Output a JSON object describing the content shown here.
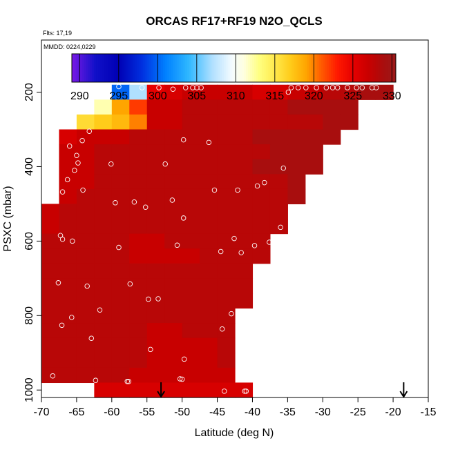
{
  "chart_data": {
    "type": "heatmap",
    "title": "ORCAS RF17+RF19 N2O_QCLS",
    "subtitle_flights": "Flts: 17,19",
    "subtitle_dates": "MMDD: 0224,0229",
    "xlabel": "Latitude (deg N)",
    "ylabel": "PSXC (mbar)",
    "xlim": [
      -70,
      -15
    ],
    "ylim": [
      1020,
      60
    ],
    "x_ticks": [
      -70,
      -65,
      -60,
      -55,
      -50,
      -45,
      -40,
      -35,
      -30,
      -25,
      -20,
      -15
    ],
    "y_ticks": [
      200,
      400,
      600,
      800,
      1000
    ],
    "colorbar": {
      "range": [
        289,
        330.5
      ],
      "ticks": [
        290,
        295,
        300,
        305,
        310,
        315,
        320,
        325,
        330
      ],
      "stops": [
        {
          "v": 289,
          "c": "#7a19e6"
        },
        {
          "v": 292,
          "c": "#1010c8"
        },
        {
          "v": 295,
          "c": "#0000b4"
        },
        {
          "v": 298,
          "c": "#0030e0"
        },
        {
          "v": 301,
          "c": "#0080ff"
        },
        {
          "v": 304,
          "c": "#30b8ff"
        },
        {
          "v": 307,
          "c": "#b0e0ff"
        },
        {
          "v": 309.5,
          "c": "#f4fbff"
        },
        {
          "v": 311,
          "c": "#ffffe0"
        },
        {
          "v": 313,
          "c": "#ffff80"
        },
        {
          "v": 315,
          "c": "#ffe94d"
        },
        {
          "v": 317,
          "c": "#ffcc1a"
        },
        {
          "v": 319,
          "c": "#ffa500"
        },
        {
          "v": 321,
          "c": "#ff5a00"
        },
        {
          "v": 323,
          "c": "#ff1a00"
        },
        {
          "v": 325,
          "c": "#e60000"
        },
        {
          "v": 327,
          "c": "#c80000"
        },
        {
          "v": 329,
          "c": "#a80e0e"
        },
        {
          "v": 330.5,
          "c": "#9c1a1a"
        }
      ]
    },
    "grid_cells": {
      "p_levels": [
        180,
        220,
        260,
        300,
        340,
        380,
        420,
        460,
        500,
        540,
        580,
        620,
        660,
        700,
        740,
        780,
        820,
        860,
        900,
        940,
        980,
        1020
      ],
      "lat_edges": [
        -70,
        -67.5,
        -65,
        -62.5,
        -60,
        -57.5,
        -55,
        -52.5,
        -50,
        -47.5,
        -45,
        -42.5,
        -40,
        -37.5,
        -35,
        -32.5,
        -30,
        -27.5,
        -25,
        -22.5,
        -20
      ],
      "value_rows": [
        [
          null,
          null,
          null,
          null,
          300,
          307,
          325,
          326,
          327,
          327,
          327,
          327,
          326,
          326,
          327,
          327,
          328,
          328,
          329,
          329
        ],
        [
          null,
          null,
          null,
          312,
          319,
          322,
          327,
          327,
          328,
          328,
          328,
          328,
          328,
          328,
          329,
          329,
          329,
          329,
          null,
          null
        ],
        [
          null,
          null,
          316,
          317,
          318,
          320,
          327,
          327,
          328,
          328,
          328,
          328,
          328,
          328,
          328,
          328,
          329,
          329,
          null,
          null
        ],
        [
          null,
          326,
          327,
          327,
          327,
          328,
          328,
          328,
          328,
          328,
          328,
          328,
          329,
          329,
          329,
          329,
          329,
          null,
          null,
          null
        ],
        [
          null,
          327,
          327,
          328,
          328,
          328,
          328,
          328,
          328,
          328,
          328,
          328,
          328,
          329,
          329,
          329,
          null,
          null,
          null,
          null
        ],
        [
          null,
          327,
          327,
          328,
          328,
          328,
          328,
          328,
          328,
          328,
          328,
          328,
          329,
          329,
          329,
          329,
          null,
          null,
          null,
          null
        ],
        [
          null,
          327,
          327,
          328,
          328,
          328,
          328,
          328,
          328,
          328,
          328,
          328,
          328,
          328,
          329,
          null,
          null,
          null,
          null,
          null
        ],
        [
          null,
          327,
          328,
          328,
          328,
          328,
          328,
          328,
          328,
          328,
          328,
          328,
          328,
          328,
          329,
          null,
          null,
          null,
          null,
          null
        ],
        [
          327,
          328,
          328,
          328,
          328,
          328,
          328,
          328,
          328,
          328,
          328,
          328,
          328,
          328,
          null,
          null,
          null,
          null,
          null,
          null
        ],
        [
          327,
          328,
          328,
          328,
          328,
          328,
          328,
          328,
          328,
          328,
          328,
          328,
          328,
          328,
          null,
          null,
          null,
          null,
          null,
          null
        ],
        [
          328,
          328,
          328,
          328,
          328,
          327,
          327,
          328,
          328,
          328,
          328,
          328,
          328,
          null,
          null,
          null,
          null,
          null,
          null,
          null
        ],
        [
          328,
          328,
          328,
          328,
          328,
          327,
          327,
          327,
          327,
          328,
          328,
          328,
          328,
          null,
          null,
          null,
          null,
          null,
          null,
          null
        ],
        [
          328,
          328,
          328,
          328,
          328,
          328,
          328,
          328,
          328,
          328,
          328,
          328,
          null,
          null,
          null,
          null,
          null,
          null,
          null,
          null
        ],
        [
          328,
          328,
          328,
          328,
          328,
          328,
          328,
          328,
          328,
          328,
          328,
          328,
          null,
          null,
          null,
          null,
          null,
          null,
          null,
          null
        ],
        [
          328,
          328,
          328,
          328,
          328,
          328,
          328,
          328,
          328,
          328,
          328,
          328,
          null,
          null,
          null,
          null,
          null,
          null,
          null,
          null
        ],
        [
          328,
          328,
          328,
          328,
          328,
          328,
          328,
          328,
          328,
          328,
          328,
          null,
          null,
          null,
          null,
          null,
          null,
          null,
          null,
          null
        ],
        [
          328,
          328,
          328,
          328,
          328,
          328,
          327,
          327,
          328,
          328,
          328,
          null,
          null,
          null,
          null,
          null,
          null,
          null,
          null,
          null
        ],
        [
          328,
          328,
          328,
          328,
          328,
          328,
          327,
          327,
          327,
          327,
          328,
          null,
          null,
          null,
          null,
          null,
          null,
          null,
          null,
          null
        ],
        [
          328,
          328,
          328,
          328,
          328,
          328,
          327,
          327,
          327,
          327,
          328,
          null,
          null,
          null,
          null,
          null,
          null,
          null,
          null,
          null
        ],
        [
          328,
          328,
          328,
          328,
          328,
          327,
          327,
          327,
          327,
          327,
          327,
          null,
          null,
          null,
          null,
          null,
          null,
          null,
          null,
          null
        ],
        [
          null,
          null,
          null,
          326,
          326,
          326,
          326,
          326,
          326,
          326,
          326,
          326,
          null,
          null,
          null,
          null,
          null,
          null,
          null,
          null
        ]
      ]
    },
    "points": [
      {
        "lat": -59.0,
        "p": 185
      },
      {
        "lat": -55.7,
        "p": 188
      },
      {
        "lat": -53.3,
        "p": 188
      },
      {
        "lat": -51.3,
        "p": 192
      },
      {
        "lat": -49.5,
        "p": 188
      },
      {
        "lat": -48.5,
        "p": 188
      },
      {
        "lat": -47.9,
        "p": 188
      },
      {
        "lat": -47.3,
        "p": 188
      },
      {
        "lat": -34.5,
        "p": 188
      },
      {
        "lat": -33.5,
        "p": 188
      },
      {
        "lat": -32.4,
        "p": 188
      },
      {
        "lat": -30.9,
        "p": 188
      },
      {
        "lat": -29.5,
        "p": 188
      },
      {
        "lat": -28.6,
        "p": 188
      },
      {
        "lat": -27.9,
        "p": 188
      },
      {
        "lat": -26.5,
        "p": 188
      },
      {
        "lat": -25.2,
        "p": 188
      },
      {
        "lat": -24.4,
        "p": 188
      },
      {
        "lat": -23.0,
        "p": 188
      },
      {
        "lat": -22.4,
        "p": 188
      },
      {
        "lat": -34.9,
        "p": 200
      },
      {
        "lat": -63.2,
        "p": 305
      },
      {
        "lat": -64.2,
        "p": 330
      },
      {
        "lat": -49.8,
        "p": 328
      },
      {
        "lat": -46.2,
        "p": 335
      },
      {
        "lat": -66.0,
        "p": 345
      },
      {
        "lat": -65.0,
        "p": 370
      },
      {
        "lat": -64.8,
        "p": 390
      },
      {
        "lat": -60.1,
        "p": 393
      },
      {
        "lat": -52.4,
        "p": 393
      },
      {
        "lat": -65.3,
        "p": 410
      },
      {
        "lat": -35.6,
        "p": 404
      },
      {
        "lat": -38.3,
        "p": 443
      },
      {
        "lat": -39.3,
        "p": 452
      },
      {
        "lat": -66.3,
        "p": 435
      },
      {
        "lat": -64.1,
        "p": 463
      },
      {
        "lat": -45.4,
        "p": 463
      },
      {
        "lat": -42.1,
        "p": 463
      },
      {
        "lat": -67.0,
        "p": 468
      },
      {
        "lat": -59.5,
        "p": 497
      },
      {
        "lat": -56.8,
        "p": 495
      },
      {
        "lat": -55.2,
        "p": 509
      },
      {
        "lat": -51.4,
        "p": 490
      },
      {
        "lat": -49.8,
        "p": 538
      },
      {
        "lat": -36.0,
        "p": 563
      },
      {
        "lat": -67.3,
        "p": 585
      },
      {
        "lat": -67.0,
        "p": 595
      },
      {
        "lat": -65.6,
        "p": 600
      },
      {
        "lat": -59.0,
        "p": 617
      },
      {
        "lat": -50.7,
        "p": 611
      },
      {
        "lat": -42.6,
        "p": 593
      },
      {
        "lat": -37.6,
        "p": 603
      },
      {
        "lat": -39.7,
        "p": 612
      },
      {
        "lat": -44.5,
        "p": 628
      },
      {
        "lat": -41.6,
        "p": 631
      },
      {
        "lat": -67.6,
        "p": 712
      },
      {
        "lat": -57.4,
        "p": 715
      },
      {
        "lat": -63.5,
        "p": 721
      },
      {
        "lat": -54.8,
        "p": 756
      },
      {
        "lat": -53.4,
        "p": 755
      },
      {
        "lat": -61.7,
        "p": 785
      },
      {
        "lat": -43.0,
        "p": 795
      },
      {
        "lat": -65.7,
        "p": 805
      },
      {
        "lat": -67.1,
        "p": 826
      },
      {
        "lat": -44.3,
        "p": 836
      },
      {
        "lat": -62.9,
        "p": 861
      },
      {
        "lat": -54.5,
        "p": 891
      },
      {
        "lat": -49.7,
        "p": 917
      },
      {
        "lat": -68.4,
        "p": 962
      },
      {
        "lat": -62.3,
        "p": 974
      },
      {
        "lat": -57.8,
        "p": 977
      },
      {
        "lat": -57.6,
        "p": 977
      },
      {
        "lat": -50.3,
        "p": 970
      },
      {
        "lat": -50.0,
        "p": 971
      },
      {
        "lat": -44.0,
        "p": 1003
      },
      {
        "lat": -41.1,
        "p": 1003
      },
      {
        "lat": -40.9,
        "p": 1003
      },
      {
        "lat": -36.7,
        "p": 1002
      },
      {
        "lat": -36.5,
        "p": 990
      }
    ],
    "arrows": [
      {
        "lat": -53.0
      },
      {
        "lat": -18.5
      }
    ],
    "colors": {
      "point_outline": "#ffffff",
      "axis": "#000000"
    }
  }
}
